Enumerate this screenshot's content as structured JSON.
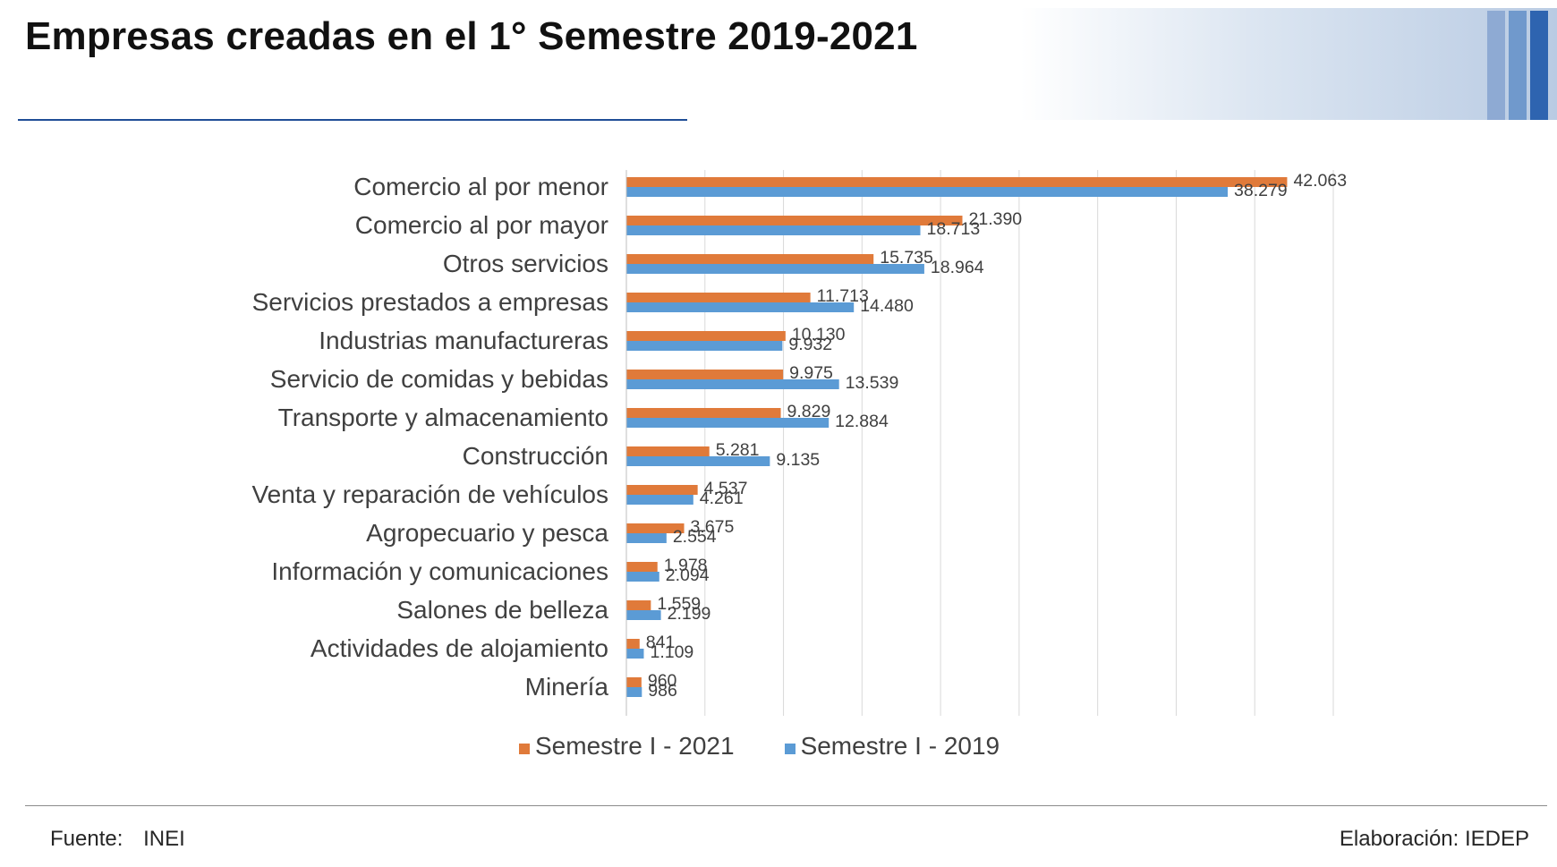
{
  "page": {
    "title": "Empresas creadas en el 1° Semestre 2019-2021",
    "footer": {
      "source_label": "Fuente:",
      "source_value": "INEI",
      "credit": "Elaboración: IEDEP"
    }
  },
  "colors": {
    "series_2021": "#e07a3a",
    "series_2019": "#5b9bd5",
    "title_rule": "#1f4e96",
    "stripe_light": "#8eaad3",
    "stripe_mid": "#7099cc",
    "stripe_dark": "#2e64b0"
  },
  "chart_data": {
    "type": "bar",
    "orientation": "horizontal",
    "title": "Empresas creadas en el 1° Semestre 2019-2021",
    "xlabel": "",
    "ylabel": "",
    "xlim": [
      0,
      45000
    ],
    "x_gridlines": [
      0,
      5000,
      10000,
      15000,
      20000,
      25000,
      30000,
      35000,
      40000,
      45000
    ],
    "grid": true,
    "legend_position": "bottom",
    "categories": [
      "Comercio al por menor",
      "Comercio al por mayor",
      "Otros servicios",
      "Servicios prestados a empresas",
      "Industrias manufactureras",
      "Servicio de comidas y bebidas",
      "Transporte y almacenamiento",
      "Construcción",
      "Venta y reparación de vehículos",
      "Agropecuario y pesca",
      "Información y comunicaciones",
      "Salones de belleza",
      "Actividades de alojamiento",
      "Minería"
    ],
    "series": [
      {
        "name": "Semestre I - 2021",
        "values": [
          42063,
          21390,
          15735,
          11713,
          10130,
          9975,
          9829,
          5281,
          4537,
          3675,
          1978,
          1559,
          841,
          960
        ],
        "labels": [
          "42.063",
          "21.390",
          "15.735",
          "11.713",
          "10.130",
          "9.975",
          "9.829",
          "5.281",
          "4.537",
          "3.675",
          "1.978",
          "1.559",
          "841",
          "960"
        ]
      },
      {
        "name": "Semestre I - 2019",
        "values": [
          38279,
          18713,
          18964,
          14480,
          9932,
          13539,
          12884,
          9135,
          4261,
          2554,
          2094,
          2199,
          1109,
          986
        ],
        "labels": [
          "38.279",
          "18.713",
          "18.964",
          "14.480",
          "9.932",
          "13.539",
          "12.884",
          "9.135",
          "4.261",
          "2.554",
          "2.094",
          "2.199",
          "1.109",
          "986"
        ]
      }
    ]
  }
}
